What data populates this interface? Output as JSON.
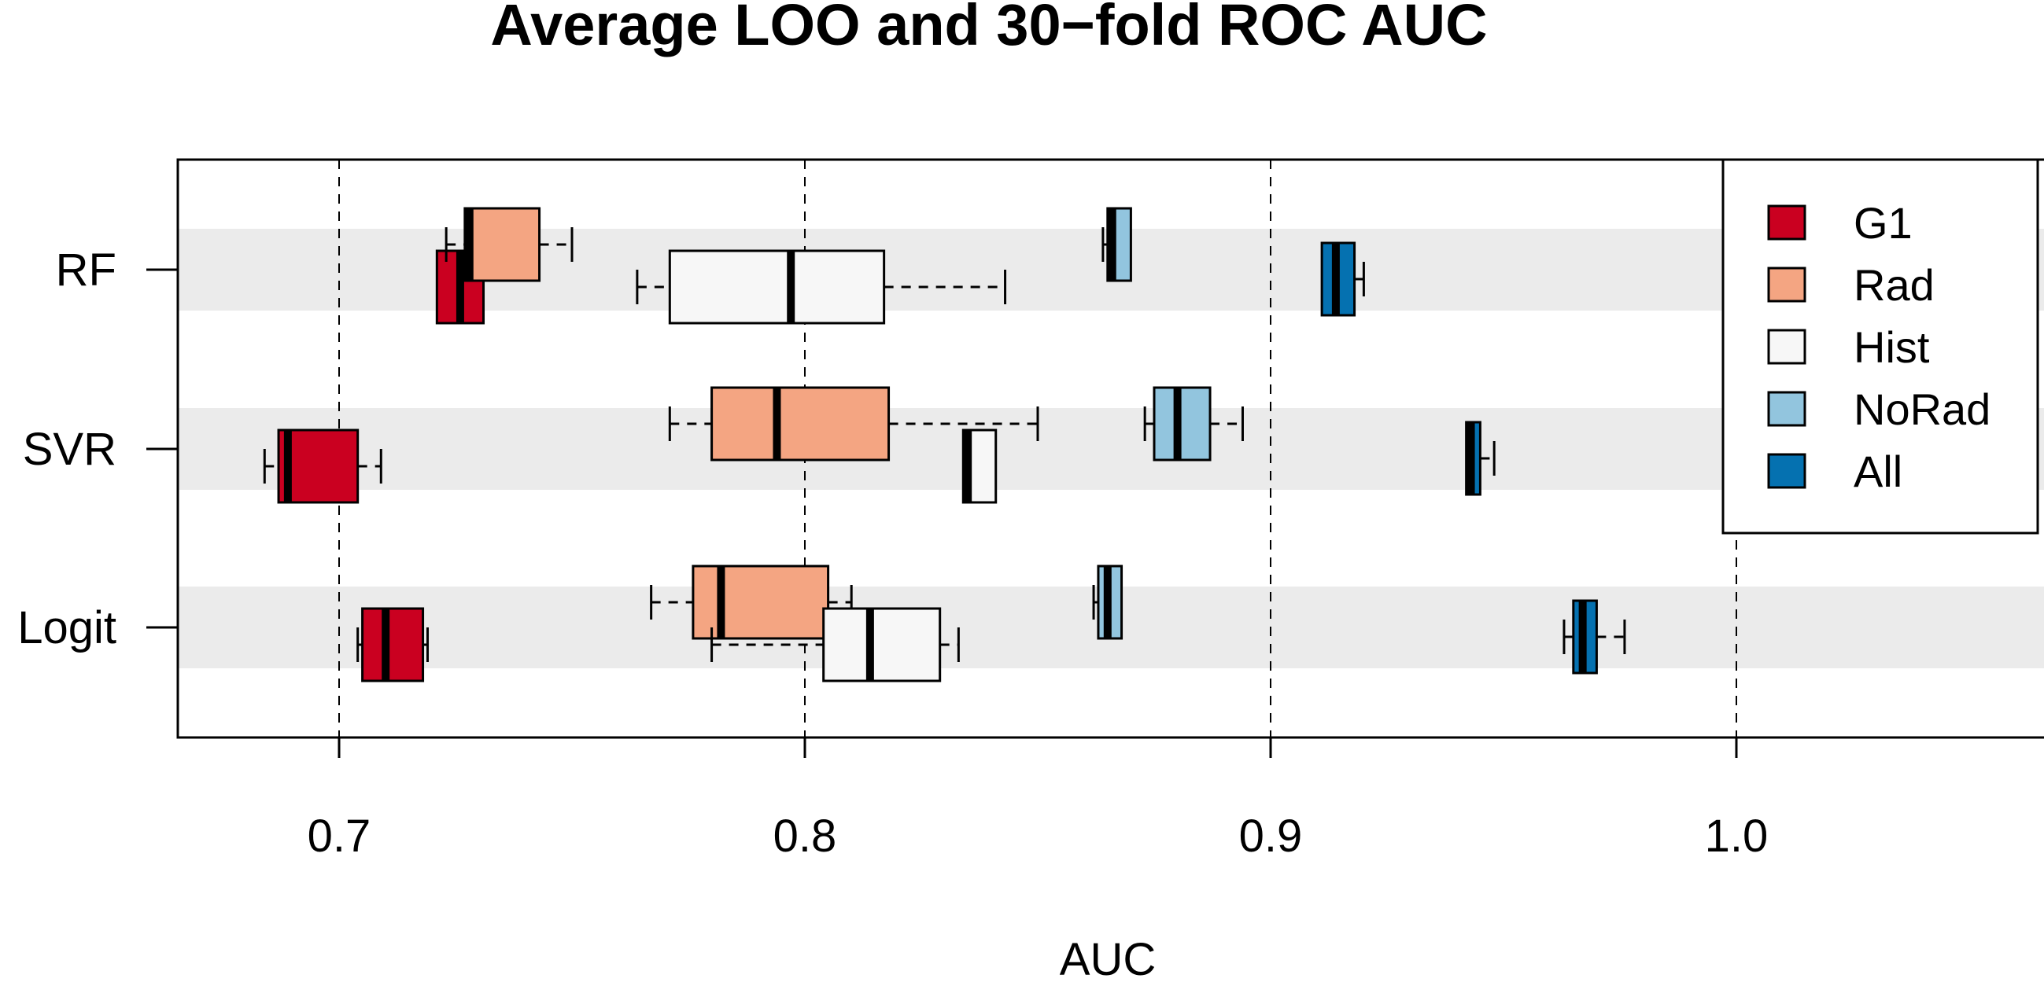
{
  "chart_data": {
    "type": "box",
    "orientation": "horizontal",
    "title": "Average LOO and 30−fold ROC AUC",
    "xlabel": "AUC",
    "ylabel": "",
    "xlim": [
      0.665,
      1.065
    ],
    "x_ticks": [
      0.7,
      0.8,
      0.9,
      1.0
    ],
    "x_tick_labels": [
      "0.7",
      "0.8",
      "0.9",
      "1.0"
    ],
    "gridlines": "vertical dashed at x ticks",
    "categories": [
      "RF",
      "SVR",
      "Logit"
    ],
    "legend": {
      "position": "top-right",
      "entries": [
        {
          "name": "G1",
          "color": "#ca0020"
        },
        {
          "name": "Rad",
          "color": "#f4a582"
        },
        {
          "name": "Hist",
          "color": "#f7f7f7"
        },
        {
          "name": "NoRad",
          "color": "#92c5de"
        },
        {
          "name": "All",
          "color": "#0571b0"
        }
      ]
    },
    "series": [
      {
        "name": "G1",
        "color": "#ca0020",
        "boxes": [
          {
            "category": "RF",
            "whisker_low": 0.721,
            "q1": 0.721,
            "median": 0.726,
            "q3": 0.731,
            "whisker_high": 0.731
          },
          {
            "category": "SVR",
            "whisker_low": 0.684,
            "q1": 0.687,
            "median": 0.689,
            "q3": 0.704,
            "whisker_high": 0.709
          },
          {
            "category": "Logit",
            "whisker_low": 0.704,
            "q1": 0.705,
            "median": 0.71,
            "q3": 0.718,
            "whisker_high": 0.719
          }
        ]
      },
      {
        "name": "Rad",
        "color": "#f4a582",
        "boxes": [
          {
            "category": "RF",
            "whisker_low": 0.723,
            "q1": 0.727,
            "median": 0.728,
            "q3": 0.743,
            "whisker_high": 0.75
          },
          {
            "category": "SVR",
            "whisker_low": 0.771,
            "q1": 0.78,
            "median": 0.794,
            "q3": 0.818,
            "whisker_high": 0.85
          },
          {
            "category": "Logit",
            "whisker_low": 0.767,
            "q1": 0.776,
            "median": 0.782,
            "q3": 0.805,
            "whisker_high": 0.81
          }
        ]
      },
      {
        "name": "Hist",
        "color": "#f7f7f7",
        "boxes": [
          {
            "category": "RF",
            "whisker_low": 0.764,
            "q1": 0.771,
            "median": 0.797,
            "q3": 0.817,
            "whisker_high": 0.843
          },
          {
            "category": "SVR",
            "whisker_low": 0.834,
            "q1": 0.834,
            "median": 0.835,
            "q3": 0.841,
            "whisker_high": 0.841
          },
          {
            "category": "Logit",
            "whisker_low": 0.78,
            "q1": 0.804,
            "median": 0.814,
            "q3": 0.829,
            "whisker_high": 0.833
          }
        ]
      },
      {
        "name": "NoRad",
        "color": "#92c5de",
        "boxes": [
          {
            "category": "RF",
            "whisker_low": 0.864,
            "q1": 0.865,
            "median": 0.866,
            "q3": 0.87,
            "whisker_high": 0.87
          },
          {
            "category": "SVR",
            "whisker_low": 0.873,
            "q1": 0.875,
            "median": 0.88,
            "q3": 0.887,
            "whisker_high": 0.894
          },
          {
            "category": "Logit",
            "whisker_low": 0.862,
            "q1": 0.863,
            "median": 0.865,
            "q3": 0.868,
            "whisker_high": 0.868
          }
        ]
      },
      {
        "name": "All",
        "color": "#0571b0",
        "boxes": [
          {
            "category": "RF",
            "whisker_low": 0.911,
            "q1": 0.911,
            "median": 0.914,
            "q3": 0.918,
            "whisker_high": 0.92
          },
          {
            "category": "SVR",
            "whisker_low": 0.942,
            "q1": 0.942,
            "median": 0.943,
            "q3": 0.945,
            "whisker_high": 0.948
          },
          {
            "category": "Logit",
            "whisker_low": 0.963,
            "q1": 0.965,
            "median": 0.967,
            "q3": 0.97,
            "whisker_high": 0.976
          }
        ]
      }
    ]
  }
}
